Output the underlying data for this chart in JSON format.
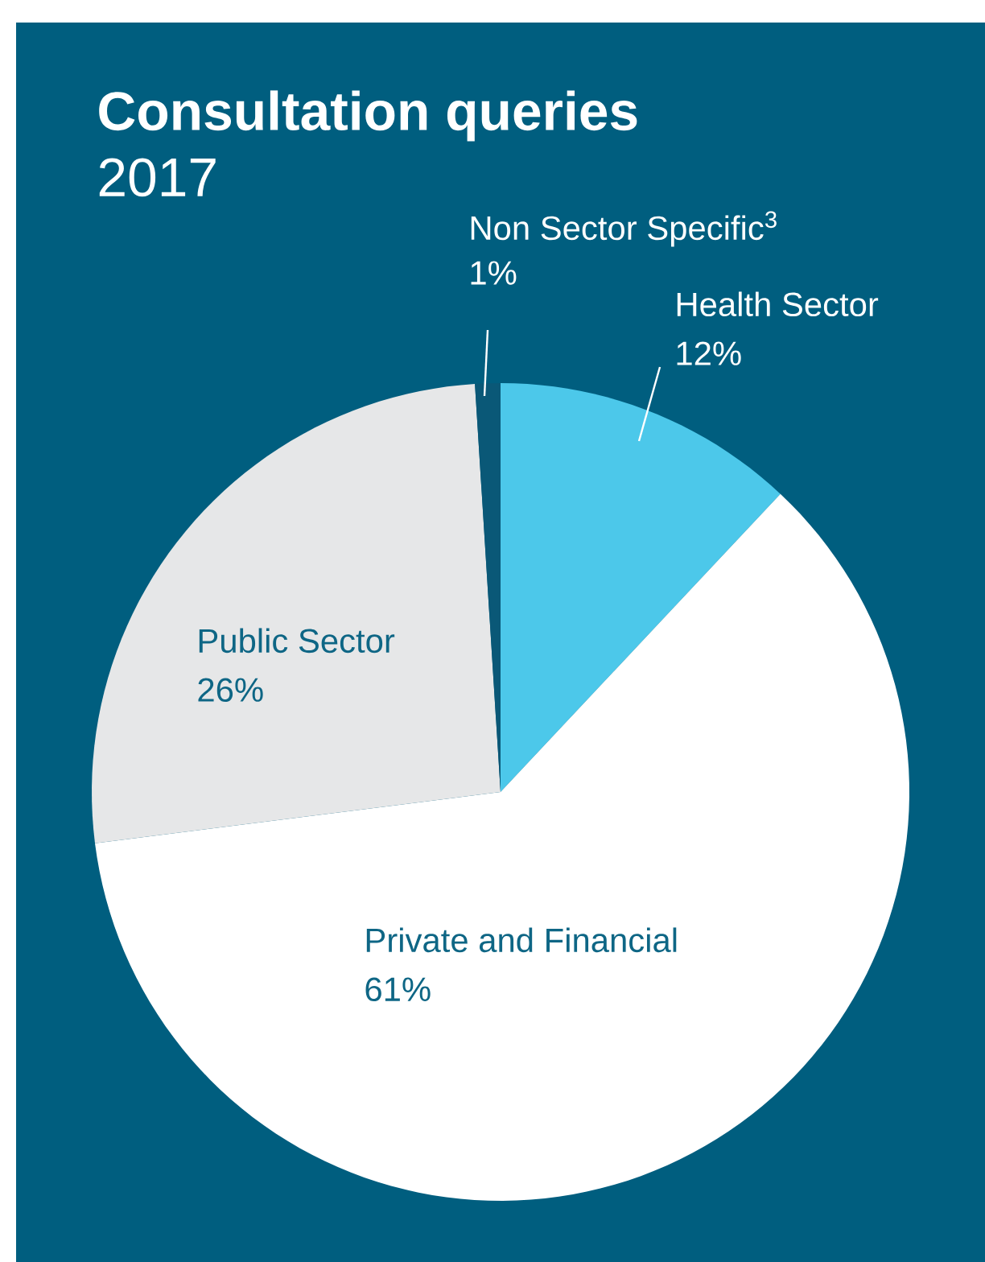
{
  "chart_data": {
    "type": "pie",
    "title": "Consultation queries",
    "subtitle": "2017",
    "categories": [
      "Health Sector",
      "Private and Financial",
      "Public Sector",
      "Non Sector Specific$^{3}$"
    ],
    "values": [
      12,
      61,
      26,
      1
    ],
    "value_labels": [
      "12%",
      "61%",
      "26%",
      "1%"
    ],
    "colors": [
      "#4cc8ea",
      "#ffffff",
      "#e6e7e8",
      "#0a5877"
    ]
  }
}
